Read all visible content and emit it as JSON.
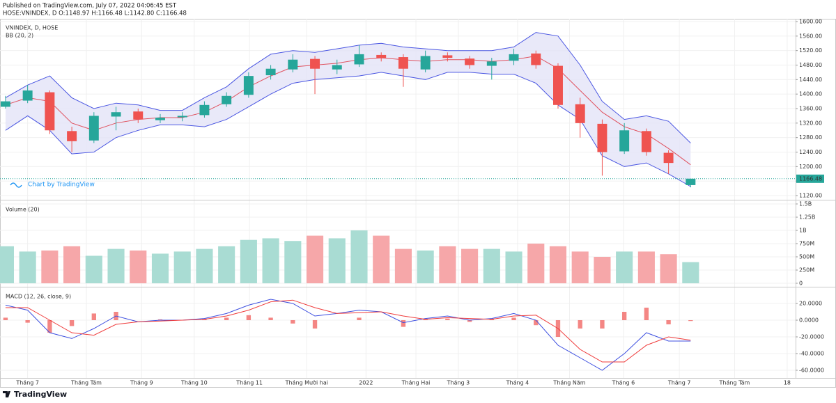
{
  "published": "Published on TradingView.com, July 07, 2022 04:06:45 EST",
  "quote": "HOSE:VNINDEX, D O:1148.97 H:1166.48 L:1142.80 C:1166.48",
  "watermark": "Chart by TradingView",
  "brand": "TradingView",
  "chart_data": [
    {
      "type": "candlestick",
      "title": "VNINDEX, D, HOSE",
      "subtitle": "BB (20, 2)",
      "xlim": [
        -0.25,
        35.75
      ],
      "ylim": [
        1108.5,
        1607.7
      ],
      "yticks": [
        {
          "value": 1120,
          "label": "1120.00"
        },
        {
          "value": 1160,
          "label": "1160.00"
        },
        {
          "value": 1200,
          "label": "1200.00"
        },
        {
          "value": 1240,
          "label": "1240.00"
        },
        {
          "value": 1280,
          "label": "1280.00"
        },
        {
          "value": 1320,
          "label": "1320.00"
        },
        {
          "value": 1360,
          "label": "1360.00"
        },
        {
          "value": 1400,
          "label": "1400.00"
        },
        {
          "value": 1440,
          "label": "1440.00"
        },
        {
          "value": 1480,
          "label": "1480.00"
        },
        {
          "value": 1520,
          "label": "1520.00"
        },
        {
          "value": 1560,
          "label": "1560.00"
        },
        {
          "value": 1600,
          "label": "1600.00"
        }
      ],
      "open": [
        1365,
        1382,
        1405,
        1298,
        1272,
        1338,
        1352,
        1328,
        1336,
        1342,
        1372,
        1398,
        1452,
        1468,
        1497,
        1468,
        1482,
        1508,
        1502,
        1468,
        1507,
        1498,
        1478,
        1492,
        1512,
        1478,
        1372,
        1318,
        1242,
        1298,
        1238,
        1148.97
      ],
      "high": [
        1395,
        1425,
        1410,
        1310,
        1350,
        1365,
        1360,
        1345,
        1350,
        1380,
        1405,
        1460,
        1480,
        1510,
        1505,
        1495,
        1535,
        1515,
        1510,
        1520,
        1515,
        1505,
        1500,
        1525,
        1520,
        1485,
        1390,
        1330,
        1320,
        1305,
        1245,
        1166.48
      ],
      "low": [
        1360,
        1375,
        1290,
        1240,
        1265,
        1300,
        1320,
        1320,
        1325,
        1335,
        1365,
        1390,
        1440,
        1460,
        1400,
        1455,
        1475,
        1490,
        1420,
        1460,
        1490,
        1470,
        1440,
        1480,
        1470,
        1360,
        1280,
        1175,
        1235,
        1230,
        1180,
        1142.8
      ],
      "close": [
        1380,
        1410,
        1300,
        1270,
        1340,
        1350,
        1330,
        1335,
        1340,
        1370,
        1395,
        1450,
        1470,
        1495,
        1470,
        1480,
        1510,
        1500,
        1470,
        1505,
        1500,
        1480,
        1490,
        1510,
        1480,
        1370,
        1320,
        1240,
        1300,
        1240,
        1210,
        1166.48
      ],
      "up_color": "#26a69a",
      "down_color": "#ef5350",
      "bands": {
        "upper": [
          1390,
          1425,
          1450,
          1390,
          1360,
          1375,
          1370,
          1355,
          1355,
          1390,
          1420,
          1470,
          1510,
          1520,
          1515,
          1525,
          1535,
          1540,
          1530,
          1525,
          1520,
          1520,
          1520,
          1530,
          1570,
          1560,
          1480,
          1380,
          1330,
          1340,
          1325,
          1265
        ],
        "middle": [
          1370,
          1390,
          1380,
          1320,
          1300,
          1320,
          1330,
          1335,
          1335,
          1350,
          1380,
          1420,
          1450,
          1475,
          1480,
          1485,
          1495,
          1500,
          1495,
          1490,
          1495,
          1495,
          1490,
          1495,
          1505,
          1470,
          1410,
          1350,
          1310,
          1290,
          1250,
          1205
        ],
        "lower": [
          1300,
          1340,
          1300,
          1235,
          1240,
          1280,
          1300,
          1315,
          1315,
          1310,
          1330,
          1365,
          1400,
          1430,
          1440,
          1445,
          1450,
          1460,
          1450,
          1440,
          1460,
          1460,
          1455,
          1455,
          1430,
          1370,
          1330,
          1230,
          1200,
          1210,
          1180,
          1145
        ],
        "color": "#4a56e2",
        "middle_color": "#e0525f",
        "fill": "#e3e4f7"
      },
      "grid": true
    },
    {
      "type": "bar",
      "title": "Volume (20)",
      "xlim": [
        -0.25,
        35.75
      ],
      "ylim": [
        -66000000,
        1566000000
      ],
      "yticks": [
        0,
        {
          "value": 250000000,
          "label": "250M"
        },
        {
          "value": 500000000,
          "label": "500M"
        },
        {
          "value": 750000000,
          "label": "750M"
        },
        {
          "value": 1000000000,
          "label": "1B"
        },
        {
          "value": 1250000000,
          "label": "1.25B"
        },
        {
          "value": 1500000000,
          "label": "1.5B"
        }
      ],
      "values": [
        700000000,
        600000000,
        620000000,
        700000000,
        520000000,
        650000000,
        620000000,
        560000000,
        600000000,
        650000000,
        700000000,
        820000000,
        850000000,
        800000000,
        900000000,
        850000000,
        1000000000,
        900000000,
        650000000,
        620000000,
        700000000,
        650000000,
        650000000,
        600000000,
        750000000,
        700000000,
        600000000,
        500000000,
        600000000,
        600000000,
        550000000,
        400000000
      ],
      "up_color": "#a9dcd3",
      "down_color": "#f6a7a9",
      "grid": true
    },
    {
      "type": "line",
      "title": "MACD (12, 26, close, 9)",
      "xlim": [
        -0.25,
        35.75
      ],
      "ylim": [
        -69.2,
        39.2
      ],
      "yticks": [
        {
          "value": 20,
          "label": "20.0000"
        },
        {
          "value": 0,
          "label": "0.0000"
        },
        {
          "value": -20,
          "label": "-20.0000"
        },
        {
          "value": -40,
          "label": "-40.0000"
        },
        {
          "value": -60,
          "label": "-60.0000"
        }
      ],
      "xticks": [
        {
          "value": 1.0,
          "label": "Tháng 7"
        },
        {
          "value": 3.66,
          "label": "Tháng Tám"
        },
        {
          "value": 6.16,
          "label": "Tháng 9"
        },
        {
          "value": 8.54,
          "label": "Tháng 10"
        },
        {
          "value": 11.04,
          "label": "Tháng 11"
        },
        {
          "value": 13.63,
          "label": "Tháng Mười hai"
        },
        {
          "value": 16.31,
          "label": "2022"
        },
        {
          "value": 18.57,
          "label": "Tháng Hai"
        },
        {
          "value": 20.49,
          "label": "Tháng 3"
        },
        {
          "value": 23.17,
          "label": "Tháng 4"
        },
        {
          "value": 25.52,
          "label": "Tháng Năm"
        },
        {
          "value": 27.96,
          "label": "Tháng 6"
        },
        {
          "value": 30.49,
          "label": "Tháng 7"
        },
        {
          "value": 32.99,
          "label": "Tháng Tám"
        },
        {
          "value": 35.37,
          "label": "18"
        }
      ],
      "series": [
        {
          "type": "bar",
          "color": "#ef5350",
          "values": [
            3,
            -3,
            -15,
            -7,
            8,
            10,
            0,
            1,
            0,
            1,
            3,
            6,
            3,
            -4,
            -10,
            0,
            3,
            0,
            -8,
            1,
            2,
            -2,
            1,
            3,
            -6,
            -20,
            -10,
            -10,
            10,
            15,
            -5,
            -1
          ]
        },
        {
          "color": "#3d4fe0",
          "values": [
            18,
            12,
            -15,
            -22,
            -10,
            5,
            -2,
            0,
            0,
            2,
            8,
            18,
            25,
            20,
            5,
            8,
            12,
            10,
            -3,
            2,
            5,
            0,
            2,
            8,
            0,
            -30,
            -45,
            -60,
            -40,
            -15,
            -25,
            -25
          ]
        },
        {
          "color": "#ef3b3b",
          "values": [
            15,
            15,
            0,
            -15,
            -18,
            -5,
            -2,
            -1,
            0,
            1,
            5,
            12,
            22,
            24,
            15,
            8,
            9,
            10,
            5,
            1,
            3,
            2,
            1,
            5,
            6,
            -10,
            -35,
            -50,
            -50,
            -30,
            -20,
            -24
          ]
        }
      ],
      "grid": true
    }
  ]
}
